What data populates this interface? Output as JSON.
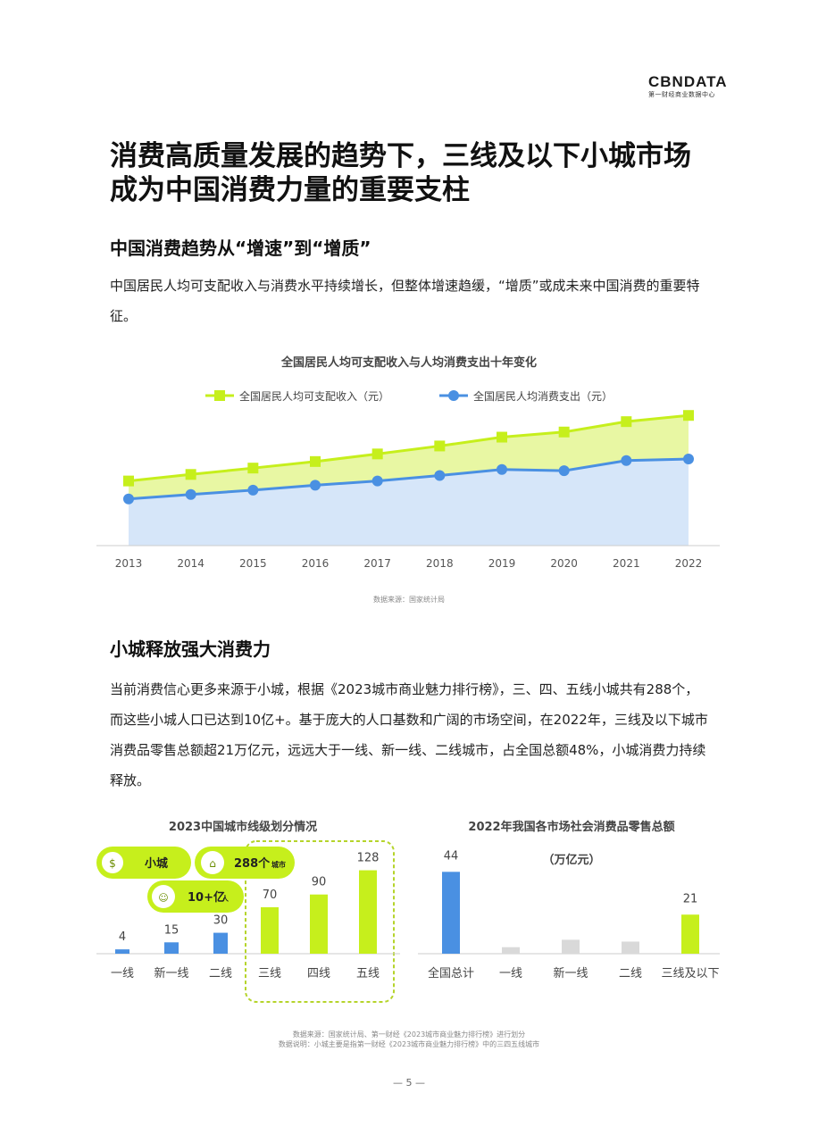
{
  "logo": {
    "main": "CBNDATA",
    "sub": "第一财经商业数据中心"
  },
  "title": "消费高质量发展的趋势下，三线及以下小城市场成为中国消费力量的重要支柱",
  "section1": {
    "heading": "中国消费趋势从“增速”到“增质”",
    "paragraph": "中国居民人均可支配收入与消费水平持续增长，但整体增速趋缓，“增质”或成未来中国消费的重要特征。",
    "source": "数据来源：国家统计局"
  },
  "section2": {
    "heading": "小城释放强大消费力",
    "paragraph": "当前消费信心更多来源于小城，根据《2023城市商业魅力排行榜》，三、四、五线小城共有288个，而这些小城人口已达到10亿+。基于庞大的人口基数和广阔的市场空间，在2022年，三线及以下城市消费品零售总额超21万亿元，远远大于一线、新一线、二线城市，占全国总额48%，小城消费力持续释放。",
    "source_lines": [
      "数据来源：国家统计局、第一财经《2023城市商业魅力排行榜》进行划分",
      "数据说明：小城主要是指第一财经《2023城市商业魅力排行榜》中的三四五线城市"
    ],
    "badges": {
      "small_city": "小城",
      "count": "288个",
      "count_unit": "城市",
      "population": "10+亿",
      "population_unit": "人"
    }
  },
  "page_number": "— 5 —",
  "colors": {
    "green": "#c6ef1c",
    "green_fill": "#e8f7a3",
    "blue": "#4a90e2",
    "blue_fill": "#d6e6f9",
    "grey": "#d9d9d9"
  },
  "chart_data": [
    {
      "type": "area",
      "title": "全国居民人均可支配收入与人均消费支出十年变化",
      "x": [
        "2013",
        "2014",
        "2015",
        "2016",
        "2017",
        "2018",
        "2019",
        "2020",
        "2021",
        "2022"
      ],
      "series": [
        {
          "name": "全国居民人均可支配收入（元）",
          "values": [
            18311,
            20167,
            21966,
            23821,
            25974,
            28228,
            30733,
            32189,
            35128,
            36883
          ]
        },
        {
          "name": "全国居民人均消费支出（元）",
          "values": [
            13220,
            14491,
            15712,
            17111,
            18322,
            19853,
            21559,
            21210,
            24100,
            24538
          ]
        }
      ],
      "ylim": [
        0,
        42000
      ],
      "legend": "top"
    },
    {
      "type": "bar",
      "title": "2023中国城市线级划分情况",
      "categories": [
        "一线",
        "新一线",
        "二线",
        "三线",
        "四线",
        "五线"
      ],
      "values": [
        4,
        15,
        30,
        70,
        90,
        128
      ],
      "highlight": [
        "三线",
        "四线",
        "五线"
      ],
      "ylim": [
        0,
        140
      ]
    },
    {
      "type": "bar",
      "title": "2022年我国各市场社会消费品零售总额",
      "subtitle": "（万亿元）",
      "categories": [
        "全国总计",
        "一线",
        "新一线",
        "二线",
        "三线及以下"
      ],
      "values": [
        44,
        3.5,
        7.5,
        6.5,
        21
      ],
      "labeled": [
        "全国总计",
        "三线及以下"
      ],
      "ylim": [
        0,
        48
      ]
    }
  ]
}
